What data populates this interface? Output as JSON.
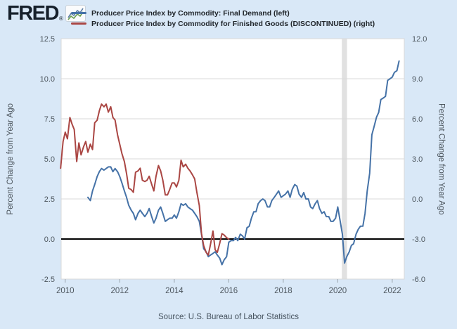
{
  "header": {
    "logo_text": "FRED",
    "registered_mark": "®",
    "legend": [
      {
        "label": "Producer Price Index by Commodity: Final Demand (left)",
        "color": "#4572a7"
      },
      {
        "label": "Producer Price Index by Commodity for Finished Goods (DISCONTINUED) (right)",
        "color": "#aa4643"
      }
    ]
  },
  "left_axis_title": "Percent Change from Year Ago",
  "right_axis_title": "Percent Change from Year Ago",
  "source": "Source: U.S. Bureau of Labor Statistics",
  "colors": {
    "page_background": "#d9e8f7",
    "plot_background": "#ffffff",
    "gridline": "#d9d9d9",
    "recession_band": "#e1e1e1",
    "zero_line": "#000000",
    "tick_text": "#4d565e",
    "blue_series": "#4572a7",
    "red_series": "#aa4643"
  },
  "chart_data": {
    "type": "line",
    "title": "",
    "grid": "horizontal-only",
    "legend_position": "top",
    "x_axis": {
      "min": 2009.85,
      "max": 2022.44,
      "ticks": [
        {
          "label": "2010",
          "v": 2010
        },
        {
          "label": "2012",
          "v": 2012
        },
        {
          "label": "2014",
          "v": 2014
        },
        {
          "label": "2016",
          "v": 2016
        },
        {
          "label": "2018",
          "v": 2018
        },
        {
          "label": "2020",
          "v": 2020
        },
        {
          "label": "2022",
          "v": 2022
        }
      ]
    },
    "left_axis": {
      "title": "Percent Change from Year Ago",
      "min": -2.5,
      "max": 12.5,
      "ticks": [
        {
          "label": "12.5",
          "v": 12.5
        },
        {
          "label": "10.0",
          "v": 10.0
        },
        {
          "label": "7.5",
          "v": 7.5
        },
        {
          "label": "5.0",
          "v": 5.0
        },
        {
          "label": "2.5",
          "v": 2.5
        },
        {
          "label": "0.0",
          "v": 0.0
        },
        {
          "label": "-2.5",
          "v": -2.5
        }
      ]
    },
    "right_axis": {
      "title": "Percent Change from Year Ago",
      "min": -6.0,
      "max": 12.0,
      "ticks": [
        {
          "label": "12.0",
          "v": 12.0
        },
        {
          "label": "9.0",
          "v": 9.0
        },
        {
          "label": "6.0",
          "v": 6.0
        },
        {
          "label": "3.0",
          "v": 3.0
        },
        {
          "label": "0.0",
          "v": 0.0
        },
        {
          "label": "-3.0",
          "v": -3.0
        },
        {
          "label": "-6.0",
          "v": -6.0
        }
      ]
    },
    "zero_line_left_value": 0.0,
    "recession_band": {
      "start": 2020.15,
      "end": 2020.34
    },
    "series": [
      {
        "name": "Producer Price Index by Commodity: Final Demand",
        "slug": "final-demand",
        "axis": "left",
        "color": "#4572a7",
        "points": [
          [
            2010.83,
            2.6
          ],
          [
            2010.92,
            2.4
          ],
          [
            2011.0,
            3.0
          ],
          [
            2011.08,
            3.4
          ],
          [
            2011.17,
            3.9
          ],
          [
            2011.25,
            4.2
          ],
          [
            2011.33,
            4.4
          ],
          [
            2011.42,
            4.3
          ],
          [
            2011.5,
            4.4
          ],
          [
            2011.58,
            4.5
          ],
          [
            2011.67,
            4.5
          ],
          [
            2011.75,
            4.2
          ],
          [
            2011.83,
            4.4
          ],
          [
            2011.92,
            4.2
          ],
          [
            2012.0,
            3.9
          ],
          [
            2012.08,
            3.5
          ],
          [
            2012.17,
            3.0
          ],
          [
            2012.25,
            2.6
          ],
          [
            2012.33,
            2.1
          ],
          [
            2012.42,
            1.8
          ],
          [
            2012.5,
            1.6
          ],
          [
            2012.58,
            1.2
          ],
          [
            2012.67,
            1.6
          ],
          [
            2012.75,
            1.8
          ],
          [
            2012.83,
            1.6
          ],
          [
            2012.92,
            1.4
          ],
          [
            2013.0,
            1.6
          ],
          [
            2013.08,
            1.9
          ],
          [
            2013.17,
            1.4
          ],
          [
            2013.25,
            1.0
          ],
          [
            2013.33,
            1.3
          ],
          [
            2013.42,
            1.8
          ],
          [
            2013.5,
            2.0
          ],
          [
            2013.58,
            1.6
          ],
          [
            2013.67,
            1.1
          ],
          [
            2013.75,
            1.2
          ],
          [
            2013.83,
            1.3
          ],
          [
            2013.92,
            1.3
          ],
          [
            2014.0,
            1.5
          ],
          [
            2014.08,
            1.3
          ],
          [
            2014.17,
            1.7
          ],
          [
            2014.25,
            2.2
          ],
          [
            2014.33,
            2.1
          ],
          [
            2014.42,
            2.2
          ],
          [
            2014.5,
            2.0
          ],
          [
            2014.58,
            1.9
          ],
          [
            2014.67,
            1.8
          ],
          [
            2014.75,
            1.6
          ],
          [
            2014.83,
            1.4
          ],
          [
            2014.92,
            1.1
          ],
          [
            2015.0,
            0.3
          ],
          [
            2015.08,
            -0.6
          ],
          [
            2015.17,
            -0.8
          ],
          [
            2015.25,
            -1.1
          ],
          [
            2015.33,
            -1.0
          ],
          [
            2015.42,
            -0.9
          ],
          [
            2015.5,
            -0.8
          ],
          [
            2015.58,
            -1.0
          ],
          [
            2015.67,
            -1.2
          ],
          [
            2015.75,
            -1.6
          ],
          [
            2015.83,
            -1.3
          ],
          [
            2015.92,
            -1.1
          ],
          [
            2016.0,
            -0.2
          ],
          [
            2016.08,
            -0.1
          ],
          [
            2016.17,
            -0.1
          ],
          [
            2016.25,
            0.1
          ],
          [
            2016.33,
            -0.1
          ],
          [
            2016.42,
            0.3
          ],
          [
            2016.5,
            0.2
          ],
          [
            2016.58,
            0.0
          ],
          [
            2016.67,
            0.7
          ],
          [
            2016.75,
            0.8
          ],
          [
            2016.83,
            1.3
          ],
          [
            2016.92,
            1.7
          ],
          [
            2017.0,
            1.7
          ],
          [
            2017.08,
            2.2
          ],
          [
            2017.17,
            2.4
          ],
          [
            2017.25,
            2.5
          ],
          [
            2017.33,
            2.4
          ],
          [
            2017.42,
            2.0
          ],
          [
            2017.5,
            2.0
          ],
          [
            2017.58,
            2.4
          ],
          [
            2017.67,
            2.6
          ],
          [
            2017.75,
            2.8
          ],
          [
            2017.83,
            3.0
          ],
          [
            2017.92,
            2.6
          ],
          [
            2018.0,
            2.7
          ],
          [
            2018.08,
            2.8
          ],
          [
            2018.17,
            3.0
          ],
          [
            2018.25,
            2.6
          ],
          [
            2018.33,
            3.1
          ],
          [
            2018.42,
            3.4
          ],
          [
            2018.5,
            3.3
          ],
          [
            2018.58,
            2.8
          ],
          [
            2018.67,
            2.6
          ],
          [
            2018.75,
            2.9
          ],
          [
            2018.83,
            2.5
          ],
          [
            2018.92,
            2.5
          ],
          [
            2019.0,
            2.0
          ],
          [
            2019.08,
            1.9
          ],
          [
            2019.17,
            2.2
          ],
          [
            2019.25,
            2.4
          ],
          [
            2019.33,
            1.9
          ],
          [
            2019.42,
            1.6
          ],
          [
            2019.5,
            1.7
          ],
          [
            2019.58,
            1.4
          ],
          [
            2019.67,
            1.4
          ],
          [
            2019.75,
            1.1
          ],
          [
            2019.83,
            1.1
          ],
          [
            2019.92,
            1.3
          ],
          [
            2020.0,
            2.0
          ],
          [
            2020.08,
            1.2
          ],
          [
            2020.17,
            0.3
          ],
          [
            2020.25,
            -1.5
          ],
          [
            2020.33,
            -1.1
          ],
          [
            2020.42,
            -0.8
          ],
          [
            2020.5,
            -0.4
          ],
          [
            2020.58,
            -0.3
          ],
          [
            2020.67,
            0.3
          ],
          [
            2020.75,
            0.6
          ],
          [
            2020.83,
            0.8
          ],
          [
            2020.92,
            0.8
          ],
          [
            2021.0,
            1.6
          ],
          [
            2021.08,
            3.0
          ],
          [
            2021.17,
            4.1
          ],
          [
            2021.25,
            6.5
          ],
          [
            2021.33,
            7.0
          ],
          [
            2021.42,
            7.6
          ],
          [
            2021.5,
            7.9
          ],
          [
            2021.58,
            8.7
          ],
          [
            2021.67,
            8.8
          ],
          [
            2021.75,
            8.9
          ],
          [
            2021.83,
            9.9
          ],
          [
            2021.92,
            10.0
          ],
          [
            2022.0,
            10.1
          ],
          [
            2022.08,
            10.4
          ],
          [
            2022.17,
            10.5
          ],
          [
            2022.25,
            11.1
          ]
        ]
      },
      {
        "name": "Producer Price Index by Commodity for Finished Goods (DISCONTINUED)",
        "slug": "finished-goods",
        "axis": "right",
        "color": "#aa4643",
        "points": [
          [
            2009.83,
            2.3
          ],
          [
            2009.92,
            4.3
          ],
          [
            2010.0,
            5.0
          ],
          [
            2010.08,
            4.5
          ],
          [
            2010.17,
            6.1
          ],
          [
            2010.25,
            5.6
          ],
          [
            2010.33,
            5.2
          ],
          [
            2010.42,
            2.8
          ],
          [
            2010.5,
            4.2
          ],
          [
            2010.58,
            3.3
          ],
          [
            2010.67,
            3.9
          ],
          [
            2010.75,
            4.3
          ],
          [
            2010.83,
            3.5
          ],
          [
            2010.92,
            4.1
          ],
          [
            2011.0,
            3.7
          ],
          [
            2011.08,
            5.7
          ],
          [
            2011.17,
            5.9
          ],
          [
            2011.25,
            6.6
          ],
          [
            2011.33,
            7.1
          ],
          [
            2011.42,
            6.9
          ],
          [
            2011.5,
            7.1
          ],
          [
            2011.58,
            6.5
          ],
          [
            2011.67,
            6.9
          ],
          [
            2011.75,
            6.1
          ],
          [
            2011.83,
            5.9
          ],
          [
            2011.92,
            4.8
          ],
          [
            2012.0,
            4.1
          ],
          [
            2012.08,
            3.4
          ],
          [
            2012.17,
            2.8
          ],
          [
            2012.25,
            1.9
          ],
          [
            2012.33,
            0.8
          ],
          [
            2012.42,
            0.7
          ],
          [
            2012.5,
            0.5
          ],
          [
            2012.58,
            2.0
          ],
          [
            2012.67,
            2.1
          ],
          [
            2012.75,
            2.3
          ],
          [
            2012.83,
            1.4
          ],
          [
            2012.92,
            1.3
          ],
          [
            2013.0,
            1.4
          ],
          [
            2013.08,
            1.7
          ],
          [
            2013.17,
            1.1
          ],
          [
            2013.25,
            0.6
          ],
          [
            2013.33,
            1.7
          ],
          [
            2013.42,
            2.5
          ],
          [
            2013.5,
            2.1
          ],
          [
            2013.58,
            1.4
          ],
          [
            2013.67,
            0.3
          ],
          [
            2013.75,
            0.3
          ],
          [
            2013.83,
            0.7
          ],
          [
            2013.92,
            1.2
          ],
          [
            2014.0,
            1.2
          ],
          [
            2014.08,
            0.9
          ],
          [
            2014.17,
            1.4
          ],
          [
            2014.25,
            2.9
          ],
          [
            2014.33,
            2.4
          ],
          [
            2014.42,
            2.6
          ],
          [
            2014.5,
            2.3
          ],
          [
            2014.58,
            2.1
          ],
          [
            2014.67,
            1.8
          ],
          [
            2014.75,
            1.5
          ],
          [
            2014.83,
            0.5
          ],
          [
            2014.92,
            -0.5
          ],
          [
            2015.0,
            -2.6
          ],
          [
            2015.08,
            -3.5
          ],
          [
            2015.17,
            -4.0
          ],
          [
            2015.25,
            -4.2
          ],
          [
            2015.33,
            -3.4
          ],
          [
            2015.42,
            -2.4
          ],
          [
            2015.5,
            -3.8
          ],
          [
            2015.58,
            -4.0
          ],
          [
            2015.67,
            -3.3
          ],
          [
            2015.75,
            -2.6
          ],
          [
            2015.83,
            -2.7
          ],
          [
            2015.92,
            -2.9
          ],
          [
            2016.0,
            -3.0
          ]
        ]
      }
    ]
  }
}
